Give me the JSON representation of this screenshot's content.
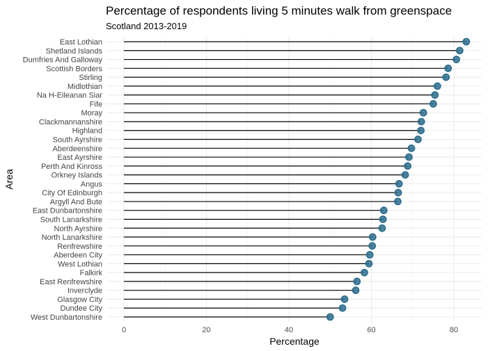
{
  "chart_data": {
    "type": "lollipop",
    "title": "Percentage of respondents living 5 minutes walk from greenspace",
    "subtitle": "Scotland 2013-2019",
    "xlabel": "Percentage",
    "ylabel": "Area",
    "xlim": [
      0,
      87
    ],
    "xticks": [
      0,
      20,
      40,
      60,
      80
    ],
    "grid": true,
    "point_color": "#2e6e8e",
    "categories": [
      "East Lothian",
      "Shetland Islands",
      "Dumfries And Galloway",
      "Scottish Borders",
      "Stirling",
      "Midlothian",
      "Na H-Eileanan Siar",
      "Fife",
      "Moray",
      "Clackmannanshire",
      "Highland",
      "South Ayrshire",
      "Aberdeenshire",
      "East Ayrshire",
      "Perth And Kinross",
      "Orkney Islands",
      "Angus",
      "City Of Edinburgh",
      "Argyll And Bute",
      "East Dunbartonshire",
      "South Lanarkshire",
      "North Ayrshire",
      "North Lanarkshire",
      "Renfrewshire",
      "Aberdeen City",
      "West Lothian",
      "Falkirk",
      "East Renfrewshire",
      "Inverclyde",
      "Glasgow City",
      "Dundee City",
      "West Dunbartonshire"
    ],
    "values": [
      83.0,
      81.4,
      80.6,
      78.6,
      78.1,
      76.0,
      75.4,
      75.0,
      72.6,
      72.1,
      72.0,
      71.3,
      69.7,
      69.1,
      68.8,
      68.2,
      66.7,
      66.5,
      66.4,
      63.0,
      62.8,
      62.6,
      60.3,
      60.2,
      59.6,
      59.4,
      58.3,
      56.5,
      56.2,
      53.5,
      53.0,
      50.0
    ]
  }
}
